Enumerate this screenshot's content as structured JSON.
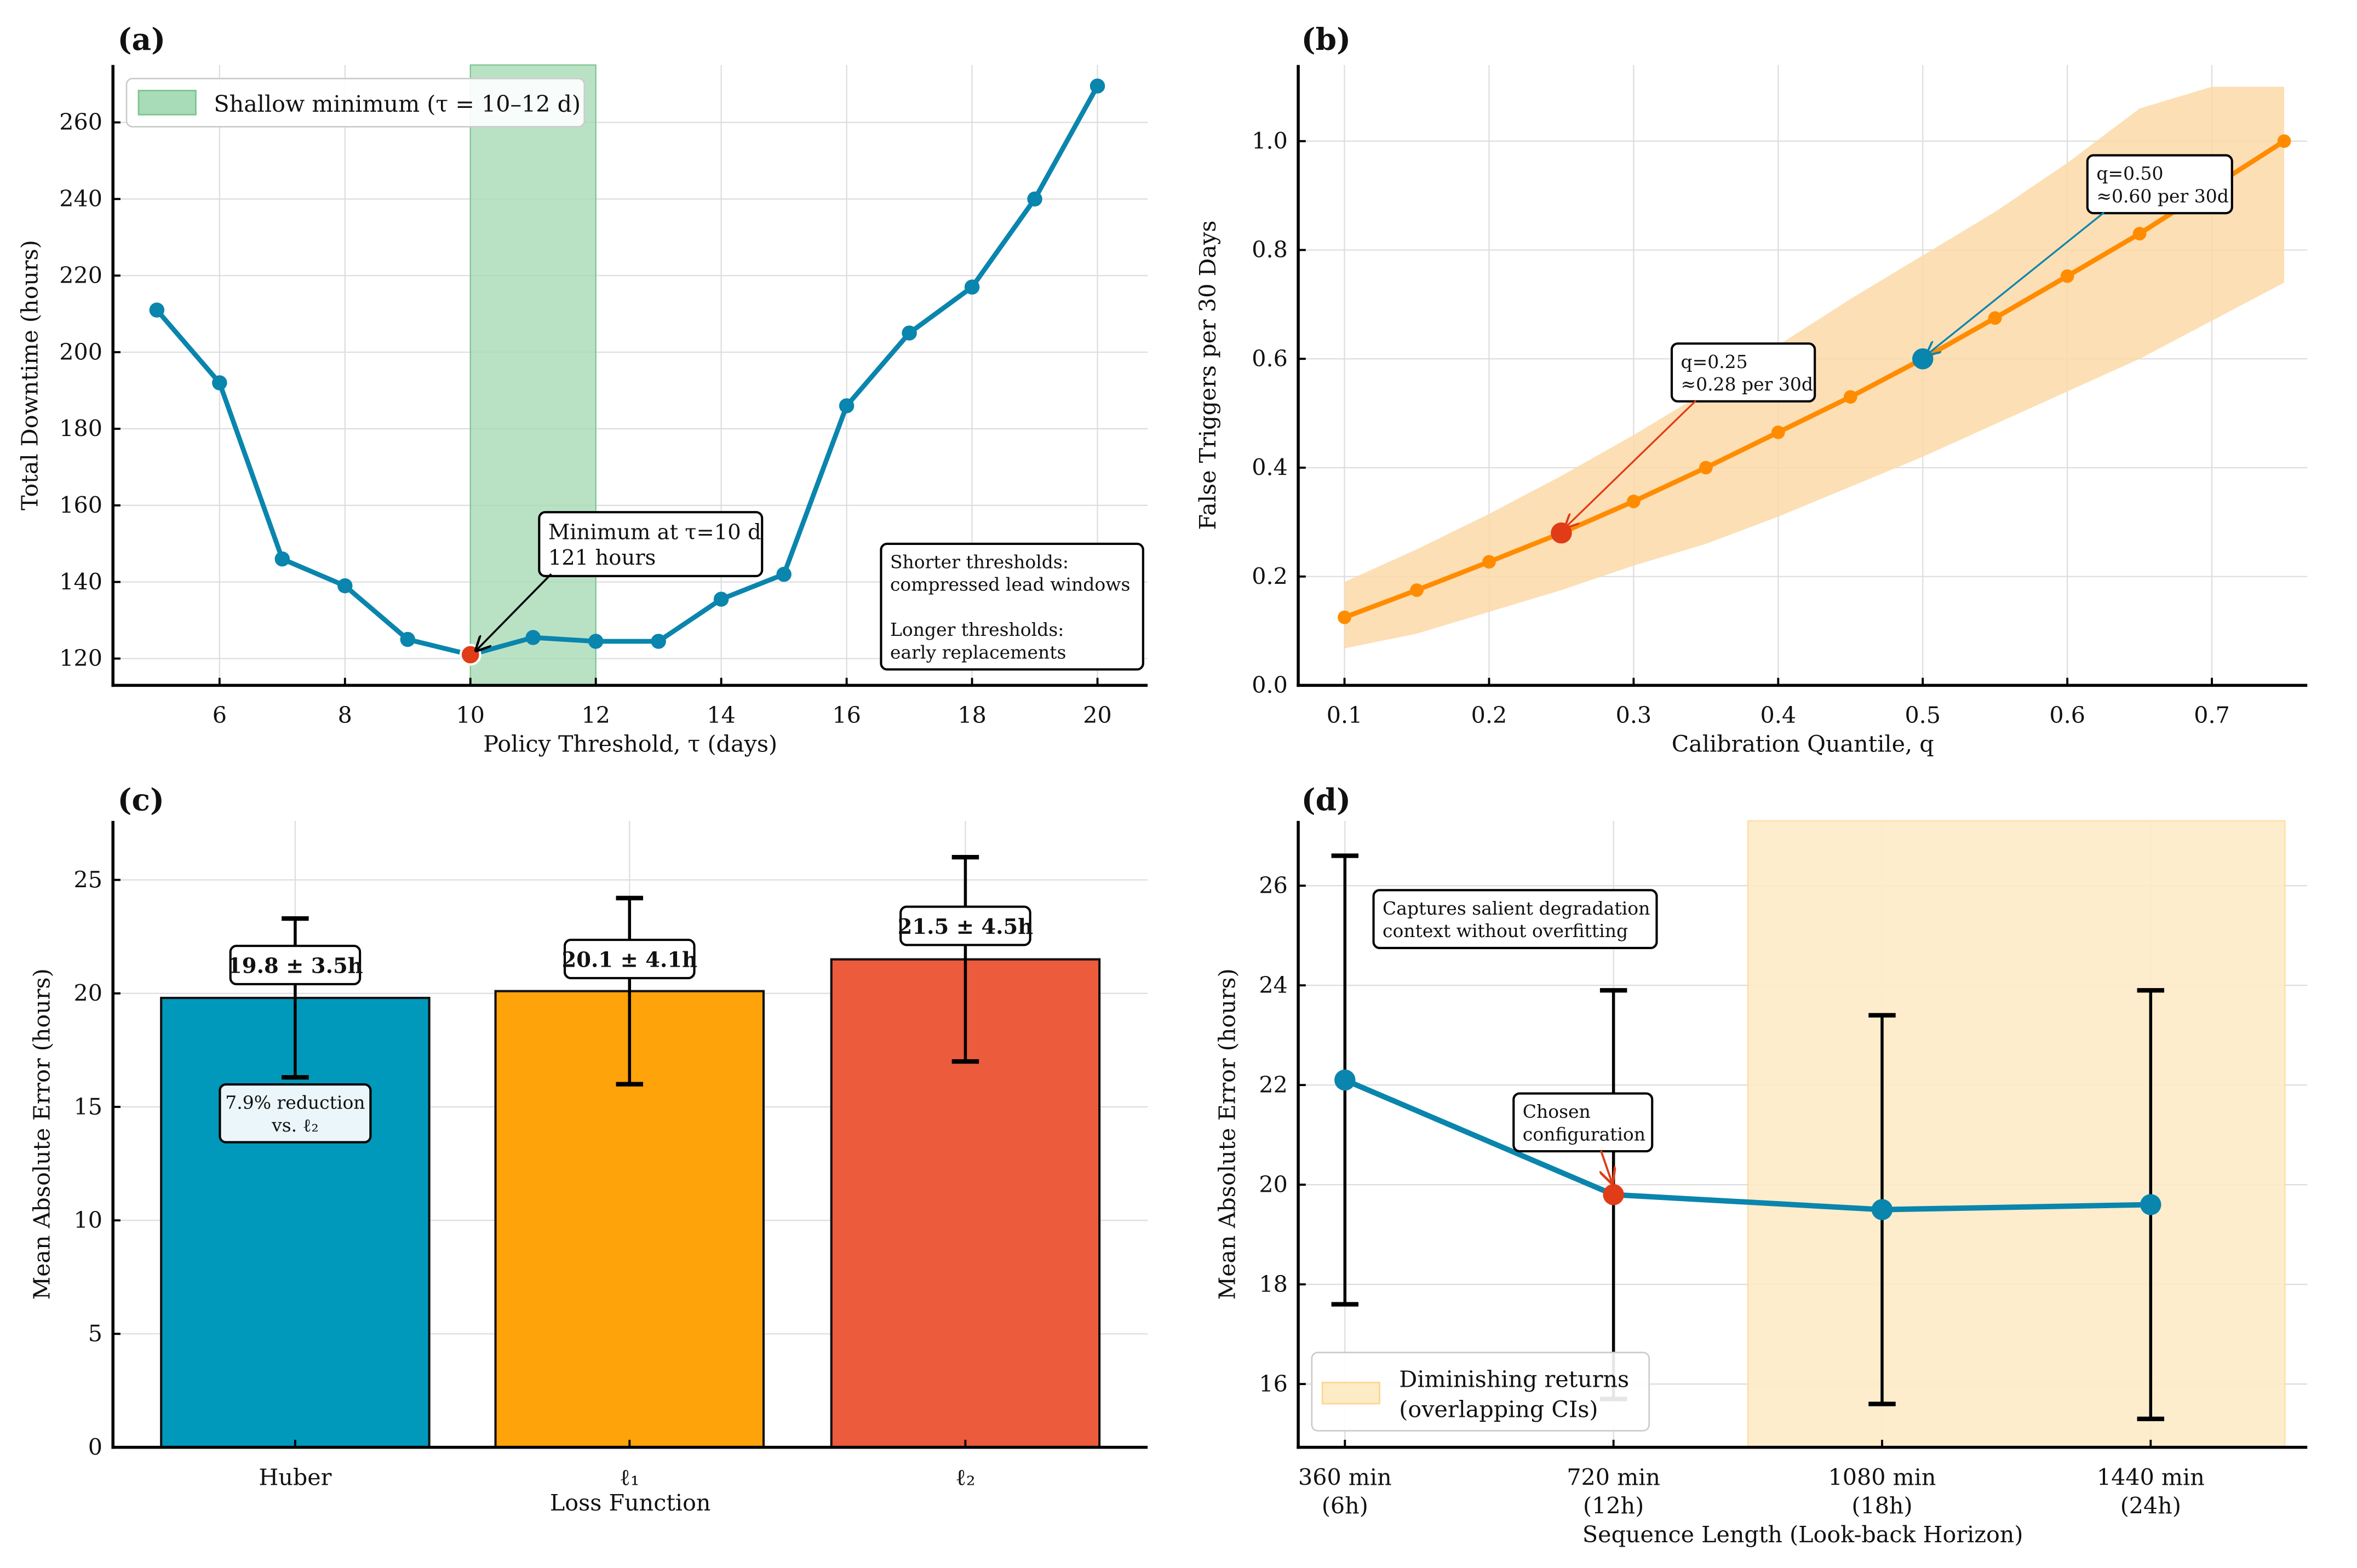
{
  "chart_data": [
    {
      "panel": "(a)",
      "type": "line",
      "title": "",
      "xlabel": "Policy Threshold, τ (days)",
      "ylabel": "Total Downtime (hours)",
      "xlim": [
        4.3,
        20.8
      ],
      "ylim": [
        113,
        275
      ],
      "xticks": [
        6,
        8,
        10,
        12,
        14,
        16,
        18,
        20
      ],
      "yticks": [
        120,
        140,
        160,
        180,
        200,
        220,
        240,
        260
      ],
      "grid": true,
      "x": [
        5,
        6,
        7,
        8,
        9,
        10,
        11,
        12,
        13,
        14,
        15,
        16,
        17,
        18,
        19,
        20
      ],
      "series": [
        {
          "name": "Total downtime",
          "color": "#0a85ad",
          "values": [
            211,
            192,
            146,
            139,
            125,
            121,
            125.5,
            124.5,
            124.5,
            135.5,
            142,
            186,
            205,
            217,
            240,
            269.5
          ]
        }
      ],
      "highlight_point": {
        "x": 10,
        "y": 121,
        "color": "#e03c17"
      },
      "shaded_region": {
        "x_from": 10,
        "x_to": 12,
        "color": "#a8dbb7",
        "label": "Shallow minimum (τ = 10–12 d)"
      },
      "legend": {
        "position": "top-left",
        "entries": [
          "Shallow minimum (τ = 10–12 d)"
        ]
      },
      "annotations": [
        {
          "lines": [
            "Minimum at τ=10 d",
            "121 hours"
          ],
          "target": [
            10,
            121
          ]
        },
        {
          "lines": [
            "Shorter thresholds:",
            "compressed lead windows",
            "",
            "Longer thresholds:",
            "early replacements"
          ],
          "position": "bottom-right"
        }
      ]
    },
    {
      "panel": "(b)",
      "type": "line",
      "title": "",
      "xlabel": "Calibration Quantile, q",
      "ylabel": "False Triggers per 30 Days",
      "xlim": [
        0.068,
        0.766
      ],
      "ylim": [
        0.0,
        1.14
      ],
      "xticks": [
        0.1,
        0.2,
        0.3,
        0.4,
        0.5,
        0.6,
        0.7
      ],
      "yticks": [
        0.0,
        0.2,
        0.4,
        0.6,
        0.8,
        1.0
      ],
      "grid": true,
      "x": [
        0.1,
        0.15,
        0.2,
        0.25,
        0.3,
        0.35,
        0.4,
        0.45,
        0.5,
        0.55,
        0.6,
        0.65,
        0.7,
        0.75
      ],
      "series": [
        {
          "name": "False triggers",
          "color": "#ff8c00",
          "values": [
            0.125,
            0.175,
            0.227,
            0.28,
            0.338,
            0.4,
            0.465,
            0.53,
            0.6,
            0.675,
            0.752,
            0.83,
            0.915,
            1.0
          ],
          "band_lower": [
            0.068,
            0.095,
            0.135,
            0.175,
            0.22,
            0.26,
            0.31,
            0.365,
            0.42,
            0.48,
            0.54,
            0.6,
            0.67,
            0.74
          ],
          "band_upper": [
            0.19,
            0.25,
            0.315,
            0.385,
            0.46,
            0.54,
            0.625,
            0.71,
            0.79,
            0.87,
            0.96,
            1.06,
            1.1,
            1.1
          ],
          "band_color": "#fdd9a8"
        }
      ],
      "highlight_points": [
        {
          "x": 0.25,
          "y": 0.28,
          "color": "#e03c17"
        },
        {
          "x": 0.5,
          "y": 0.6,
          "color": "#0a85ad"
        }
      ],
      "annotations": [
        {
          "lines": [
            "q=0.25",
            "≈0.28 per 30d"
          ],
          "color": "#e03c17",
          "target": [
            0.25,
            0.28
          ]
        },
        {
          "lines": [
            "q=0.50",
            "≈0.60 per 30d"
          ],
          "color": "#0a85ad",
          "target": [
            0.5,
            0.6
          ]
        }
      ]
    },
    {
      "panel": "(c)",
      "type": "bar",
      "title": "",
      "xlabel": "Loss Function",
      "ylabel": "Mean Absolute Error (hours)",
      "ylim": [
        0,
        27.6
      ],
      "yticks": [
        0,
        5,
        10,
        15,
        20,
        25
      ],
      "grid": true,
      "categories": [
        "Huber",
        "ℓ₁",
        "ℓ₂"
      ],
      "values": [
        19.8,
        20.1,
        21.5
      ],
      "errors": [
        3.5,
        4.1,
        4.5
      ],
      "colors": [
        "#0099bb",
        "#ffa30a",
        "#eb5b3c"
      ],
      "data_labels": [
        "19.8 ± 3.5h",
        "20.1 ± 4.1h",
        "21.5 ± 4.5h"
      ],
      "annotations": [
        {
          "lines": [
            "7.9% reduction",
            "vs. ℓ₂"
          ],
          "color": "#0a85ad",
          "bar": 0
        }
      ]
    },
    {
      "panel": "(d)",
      "type": "line",
      "title": "",
      "xlabel": "Sequence Length (Look-back Horizon)",
      "ylabel": "Mean Absolute Error (hours)",
      "ylim": [
        14.73,
        27.3
      ],
      "yticks": [
        16,
        18,
        20,
        22,
        24,
        26
      ],
      "grid": true,
      "categories": [
        "360 min\n(6h)",
        "720 min\n(12h)",
        "1080 min\n(18h)",
        "1440 min\n(24h)"
      ],
      "category_lines": [
        [
          "360 min",
          "(6h)"
        ],
        [
          "720 min",
          "(12h)"
        ],
        [
          "1080 min",
          "(18h)"
        ],
        [
          "1440 min",
          "(24h)"
        ]
      ],
      "series": [
        {
          "name": "MAE",
          "color": "#0a85ad",
          "values": [
            22.1,
            19.8,
            19.5,
            19.6
          ],
          "err_lower": [
            17.6,
            15.7,
            15.6,
            15.3
          ],
          "err_upper": [
            26.6,
            23.9,
            23.4,
            23.9
          ]
        }
      ],
      "highlight_point": {
        "index": 1,
        "color": "#e03c17"
      },
      "shaded_region": {
        "x_from": 1.5,
        "x_to": 3.5,
        "color": "#fdebc6",
        "label": "Diminishing returns (overlapping CIs)"
      },
      "legend": {
        "position": "bottom-left",
        "entries": [
          "Diminishing returns (overlapping CIs)"
        ]
      },
      "annotations": [
        {
          "lines": [
            "Captures salient degradation",
            "context without overfitting"
          ],
          "position": "top-left"
        },
        {
          "lines": [
            "Chosen",
            "configuration"
          ],
          "color": "#e03c17",
          "target_index": 1
        }
      ]
    }
  ]
}
